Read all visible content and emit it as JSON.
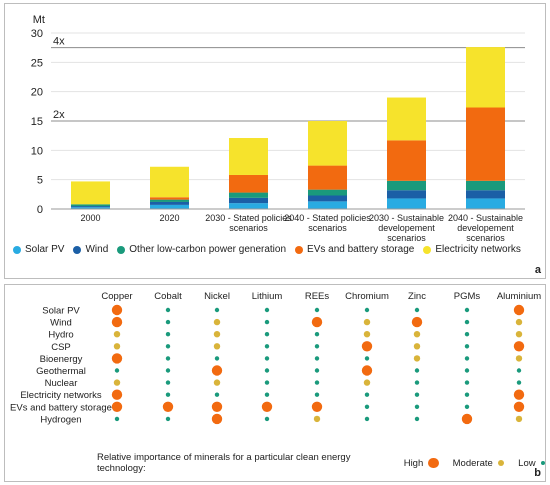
{
  "chart_data": [
    {
      "type": "bar",
      "stacked": true,
      "ylabel": "Mt",
      "ylim": [
        0,
        30
      ],
      "yticks": [
        0,
        5,
        10,
        15,
        20,
        25,
        30
      ],
      "grid": true,
      "reference_lines": [
        {
          "label": "4x",
          "value": 27.5
        },
        {
          "label": "2x",
          "value": 15
        }
      ],
      "categories": [
        "2000",
        "2020",
        "2030 - Stated policies scenarios",
        "2040 - Stated policies scenarios",
        "2030 - Sustainable developement scenarios",
        "2040 - Sustainable developement scenarios"
      ],
      "category_lines": [
        [
          "2000"
        ],
        [
          "2020"
        ],
        [
          "2030 - Stated policies",
          "scenarios"
        ],
        [
          "2040 - Stated policies",
          "scenarios"
        ],
        [
          "2030 - Sustainable",
          "developement",
          "scenarios"
        ],
        [
          "2040 - Sustainable",
          "developement",
          "scenarios"
        ]
      ],
      "series": [
        {
          "name": "Solar PV",
          "color": "#29abe2",
          "values": [
            0.3,
            0.7,
            1.0,
            1.3,
            1.8,
            1.8
          ]
        },
        {
          "name": "Wind",
          "color": "#1b5fa6",
          "values": [
            0.2,
            0.5,
            0.9,
            1.0,
            1.4,
            1.4
          ]
        },
        {
          "name": "Other low-carbon power generation",
          "color": "#1a9a7c",
          "values": [
            0.3,
            0.4,
            0.9,
            1.0,
            1.6,
            1.6
          ]
        },
        {
          "name": "EVs and battery storage",
          "color": "#f26a10",
          "values": [
            0.0,
            0.4,
            3.0,
            4.1,
            6.9,
            12.5
          ]
        },
        {
          "name": "Electricity networks",
          "color": "#f6e32c",
          "values": [
            3.9,
            5.2,
            6.3,
            7.6,
            7.3,
            10.3
          ]
        }
      ],
      "panel_label": "a"
    },
    {
      "type": "table",
      "columns": [
        "Copper",
        "Cobalt",
        "Nickel",
        "Lithium",
        "REEs",
        "Chromium",
        "Zinc",
        "PGMs",
        "Aluminium"
      ],
      "rows": [
        "Solar PV",
        "Wind",
        "Hydro",
        "CSP",
        "Bioenergy",
        "Geothermal",
        "Nuclear",
        "Electricity networks",
        "EVs and battery storage",
        "Hydrogen"
      ],
      "levels": {
        "High": {
          "color": "#f26a10"
        },
        "Moderate": {
          "color": "#d9b43a"
        },
        "Low": {
          "color": "#1a9a7c"
        }
      },
      "values": [
        [
          "High",
          "Low",
          "Low",
          "Low",
          "Low",
          "Low",
          "Low",
          "Low",
          "High"
        ],
        [
          "High",
          "Low",
          "Moderate",
          "Low",
          "High",
          "Moderate",
          "High",
          "Low",
          "Moderate"
        ],
        [
          "Moderate",
          "Low",
          "Moderate",
          "Low",
          "Low",
          "Moderate",
          "Moderate",
          "Low",
          "Moderate"
        ],
        [
          "Moderate",
          "Low",
          "Moderate",
          "Low",
          "Low",
          "High",
          "Moderate",
          "Low",
          "High"
        ],
        [
          "High",
          "Low",
          "Low",
          "Low",
          "Low",
          "Low",
          "Moderate",
          "Low",
          "Moderate"
        ],
        [
          "Low",
          "Low",
          "High",
          "Low",
          "Low",
          "High",
          "Low",
          "Low",
          "Low"
        ],
        [
          "Moderate",
          "Low",
          "Moderate",
          "Low",
          "Low",
          "Moderate",
          "Low",
          "Low",
          "Low"
        ],
        [
          "High",
          "Low",
          "Low",
          "Low",
          "Low",
          "Low",
          "Low",
          "Low",
          "High"
        ],
        [
          "High",
          "High",
          "High",
          "High",
          "High",
          "Low",
          "Low",
          "Low",
          "High"
        ],
        [
          "Low",
          "Low",
          "High",
          "Low",
          "Moderate",
          "Low",
          "Low",
          "High",
          "Moderate"
        ]
      ],
      "legend_caption": "Relative importance of minerals for a particular clean energy technology:",
      "panel_label": "b"
    }
  ]
}
